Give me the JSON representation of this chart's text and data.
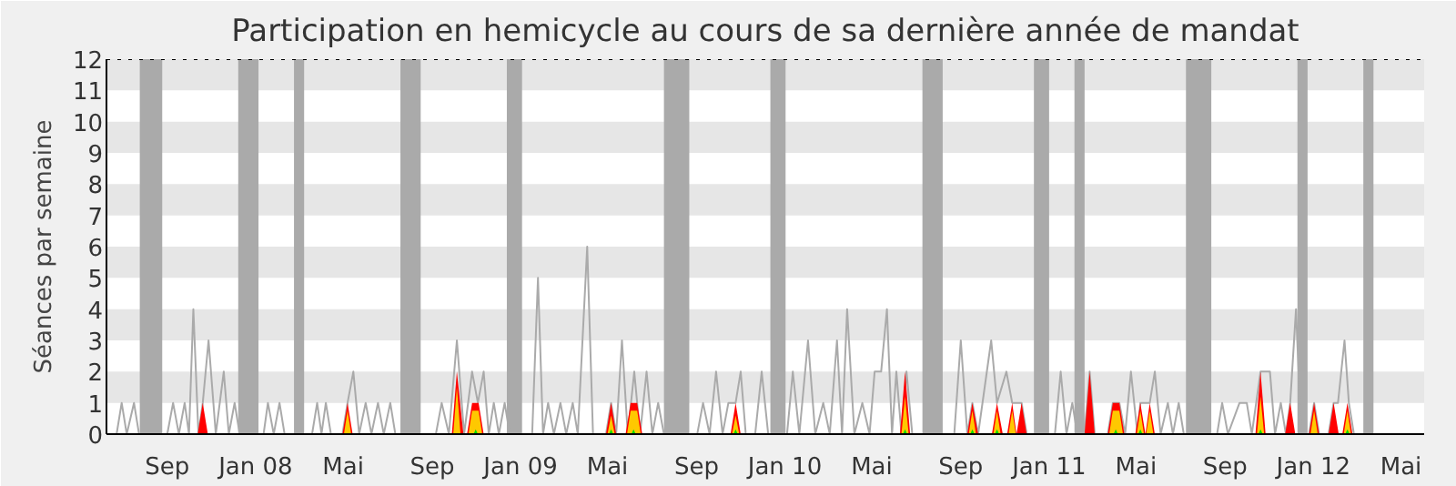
{
  "chart_data": {
    "type": "line",
    "title": "Participation en hemicycle au cours de sa dernière année de mandat",
    "ylabel": "Séances par semaine",
    "xlim": [
      "2007-06-09",
      "2012-06-02"
    ],
    "xticks": [
      {
        "value": "2007-09-01",
        "label": "Sep"
      },
      {
        "value": "2008-01-01",
        "label": "Jan 08"
      },
      {
        "value": "2008-05-01",
        "label": "Mai"
      },
      {
        "value": "2008-09-01",
        "label": "Sep"
      },
      {
        "value": "2009-01-01",
        "label": "Jan 09"
      },
      {
        "value": "2009-05-01",
        "label": "Mai"
      },
      {
        "value": "2009-09-01",
        "label": "Sep"
      },
      {
        "value": "2010-01-01",
        "label": "Jan 10"
      },
      {
        "value": "2010-05-01",
        "label": "Mai"
      },
      {
        "value": "2010-09-01",
        "label": "Sep"
      },
      {
        "value": "2011-01-01",
        "label": "Jan 11"
      },
      {
        "value": "2011-05-01",
        "label": "Mai"
      },
      {
        "value": "2011-09-01",
        "label": "Sep"
      },
      {
        "value": "2012-01-01",
        "label": "Jan 12"
      },
      {
        "value": "2012-05-01",
        "label": "Mai"
      }
    ],
    "ylim": [
      0,
      12
    ],
    "yticks": [
      0,
      1,
      2,
      3,
      4,
      5,
      6,
      7,
      8,
      9,
      10,
      11,
      12
    ],
    "bands": [
      {
        "axis": "y",
        "from": 1,
        "to": 2,
        "color": "#e6e6e6"
      },
      {
        "axis": "y",
        "from": 3,
        "to": 4,
        "color": "#e6e6e6"
      },
      {
        "axis": "y",
        "from": 5,
        "to": 6,
        "color": "#e6e6e6"
      },
      {
        "axis": "y",
        "from": 7,
        "to": 8,
        "color": "#e6e6e6"
      },
      {
        "axis": "y",
        "from": 9,
        "to": 10,
        "color": "#e6e6e6"
      },
      {
        "axis": "y",
        "from": 11,
        "to": 12,
        "color": "#e6e6e6"
      },
      {
        "axis": "x",
        "from": "2007-07-25",
        "to": "2007-08-25",
        "color": "#aaaaaa"
      },
      {
        "axis": "x",
        "from": "2007-12-08",
        "to": "2008-01-05",
        "color": "#aaaaaa"
      },
      {
        "axis": "x",
        "from": "2008-02-23",
        "to": "2008-03-08",
        "color": "#aaaaaa"
      },
      {
        "axis": "x",
        "from": "2008-07-19",
        "to": "2008-08-16",
        "color": "#aaaaaa"
      },
      {
        "axis": "x",
        "from": "2008-12-13",
        "to": "2009-01-03",
        "color": "#aaaaaa"
      },
      {
        "axis": "x",
        "from": "2009-07-18",
        "to": "2009-08-22",
        "color": "#aaaaaa"
      },
      {
        "axis": "x",
        "from": "2009-12-12",
        "to": "2010-01-02",
        "color": "#aaaaaa"
      },
      {
        "axis": "x",
        "from": "2010-07-10",
        "to": "2010-08-07",
        "color": "#aaaaaa"
      },
      {
        "axis": "x",
        "from": "2010-12-11",
        "to": "2011-01-01",
        "color": "#aaaaaa"
      },
      {
        "axis": "x",
        "from": "2011-02-05",
        "to": "2011-02-19",
        "color": "#aaaaaa"
      },
      {
        "axis": "x",
        "from": "2011-07-09",
        "to": "2011-08-13",
        "color": "#aaaaaa"
      },
      {
        "axis": "x",
        "from": "2011-12-10",
        "to": "2011-12-24",
        "color": "#aaaaaa"
      },
      {
        "axis": "x",
        "from": "2012-03-10",
        "to": "2012-03-24",
        "color": "#aaaaaa"
      }
    ],
    "ref_lines": [
      {
        "axis": "y",
        "value": 12,
        "color": "#000000",
        "line_style": "dotted"
      }
    ],
    "series": [
      {
        "color": "#aaaaaa",
        "x": [
          "2007-06-09",
          "2007-06-23",
          "2007-06-30",
          "2007-07-07",
          "2007-07-17",
          "2007-07-24",
          "2007-09-01",
          "2007-09-09",
          "2007-09-17",
          "2007-09-25",
          "2007-10-01",
          "2007-10-07",
          "2007-10-14",
          "2007-10-20",
          "2007-10-28",
          "2007-11-07",
          "2007-11-18",
          "2007-11-25",
          "2007-12-03",
          "2007-12-10",
          "2008-01-12",
          "2008-01-18",
          "2008-01-26",
          "2008-02-03",
          "2008-02-10",
          "2008-03-19",
          "2008-03-26",
          "2008-04-01",
          "2008-04-07",
          "2008-04-14",
          "2008-04-30",
          "2008-05-07",
          "2008-05-15",
          "2008-05-23",
          "2008-06-01",
          "2008-06-09",
          "2008-06-18",
          "2008-06-26",
          "2008-07-05",
          "2008-07-12",
          "2008-09-06",
          "2008-09-14",
          "2008-09-24",
          "2008-10-05",
          "2008-10-15",
          "2008-10-26",
          "2008-11-03",
          "2008-11-11",
          "2008-11-18",
          "2008-11-25",
          "2008-12-02",
          "2008-12-10",
          "2008-12-17",
          "2009-01-17",
          "2009-01-25",
          "2009-02-01",
          "2009-02-08",
          "2009-02-16",
          "2009-02-25",
          "2009-03-05",
          "2009-03-14",
          "2009-03-21",
          "2009-04-03",
          "2009-04-11",
          "2009-04-29",
          "2009-05-06",
          "2009-05-13",
          "2009-05-21",
          "2009-05-29",
          "2009-06-07",
          "2009-06-15",
          "2009-06-24",
          "2009-07-02",
          "2009-07-10",
          "2009-07-18",
          "2009-09-02",
          "2009-09-10",
          "2009-09-19",
          "2009-09-28",
          "2009-10-07",
          "2009-10-15",
          "2009-10-25",
          "2009-11-01",
          "2009-11-08",
          "2009-11-21",
          "2009-11-30",
          "2009-12-09",
          "2010-01-04",
          "2010-01-12",
          "2010-01-21",
          "2010-02-02",
          "2010-02-12",
          "2010-02-23",
          "2010-03-04",
          "2010-03-14",
          "2010-03-21",
          "2010-03-28",
          "2010-04-07",
          "2010-04-18",
          "2010-04-28",
          "2010-05-05",
          "2010-05-14",
          "2010-05-22",
          "2010-05-29",
          "2010-06-04",
          "2010-06-11",
          "2010-06-18",
          "2010-06-26",
          "2010-08-23",
          "2010-09-01",
          "2010-09-10",
          "2010-09-17",
          "2010-09-25",
          "2010-10-13",
          "2010-10-21",
          "2010-11-03",
          "2010-11-11",
          "2010-11-17",
          "2010-11-24",
          "2010-12-01",
          "2011-01-09",
          "2011-01-17",
          "2011-01-25",
          "2011-02-02",
          "2011-02-09",
          "2011-02-19",
          "2011-02-26",
          "2011-03-05",
          "2011-03-23",
          "2011-03-30",
          "2011-04-08",
          "2011-04-16",
          "2011-04-24",
          "2011-05-03",
          "2011-05-07",
          "2011-05-20",
          "2011-05-27",
          "2011-06-04",
          "2011-06-14",
          "2011-06-21",
          "2011-06-29",
          "2011-07-06",
          "2011-08-21",
          "2011-08-28",
          "2011-09-05",
          "2011-09-21",
          "2011-10-01",
          "2011-10-08",
          "2011-10-20",
          "2011-11-02",
          "2011-11-09",
          "2011-11-17",
          "2011-11-24",
          "2011-11-30",
          "2011-12-08",
          "2011-12-15",
          "2011-12-26",
          "2012-01-02",
          "2012-01-09",
          "2012-01-22",
          "2012-01-29",
          "2012-02-04",
          "2012-02-13",
          "2012-02-19",
          "2012-02-26",
          "2012-06-02"
        ],
        "values": [
          0,
          0,
          1,
          0,
          1,
          0,
          0,
          1,
          0,
          1,
          0,
          4,
          0,
          1,
          3,
          0,
          2,
          0,
          1,
          0,
          0,
          1,
          0,
          1,
          0,
          0,
          1,
          0,
          1,
          0,
          0,
          1,
          2,
          0,
          1,
          0,
          1,
          0,
          1,
          0,
          0,
          1,
          0,
          3,
          0,
          2,
          1,
          2,
          0,
          1,
          0,
          1,
          0,
          0,
          5,
          0,
          1,
          0,
          1,
          0,
          1,
          0,
          6,
          0,
          0,
          1,
          0,
          3,
          0,
          2,
          0,
          2,
          0,
          1,
          0,
          0,
          1,
          0,
          2,
          0,
          1,
          1,
          2,
          0,
          0,
          2,
          0,
          0,
          2,
          0,
          3,
          0,
          1,
          0,
          3,
          0,
          4,
          0,
          1,
          0,
          2,
          2,
          4,
          0,
          2,
          0,
          2,
          0,
          0,
          3,
          0,
          1,
          0,
          3,
          1,
          2,
          1,
          1,
          1,
          0,
          0,
          2,
          0,
          1,
          0,
          0,
          2,
          0,
          0,
          1,
          1,
          0,
          2,
          0,
          1,
          1,
          2,
          0,
          1,
          0,
          1,
          0,
          0,
          1,
          0,
          1,
          1,
          0,
          2,
          2,
          0,
          1,
          0,
          1,
          4,
          0,
          0,
          1,
          0,
          0,
          1,
          1,
          3,
          1,
          0,
          0
        ]
      },
      {
        "type": "area",
        "color": "#ff0000",
        "x": [
          "2007-10-13",
          "2007-10-20",
          "2007-10-27",
          "2008-04-30",
          "2008-05-07",
          "2008-05-14",
          "2008-09-28",
          "2008-10-05",
          "2008-10-14",
          "2008-10-19",
          "2008-10-26",
          "2008-11-04",
          "2008-11-11",
          "2009-04-29",
          "2009-05-06",
          "2009-05-13",
          "2009-05-26",
          "2009-06-02",
          "2009-06-11",
          "2009-06-18",
          "2009-10-18",
          "2009-10-25",
          "2009-11-01",
          "2010-06-09",
          "2010-06-16",
          "2010-06-23",
          "2010-09-10",
          "2010-09-17",
          "2010-09-25",
          "2010-10-14",
          "2010-10-21",
          "2010-10-29",
          "2010-11-04",
          "2010-11-11",
          "2010-11-17",
          "2010-11-24",
          "2010-12-01",
          "2011-02-19",
          "2011-02-26",
          "2011-03-05",
          "2011-03-23",
          "2011-03-30",
          "2011-04-08",
          "2011-04-15",
          "2011-04-30",
          "2011-05-07",
          "2011-05-14",
          "2011-05-20",
          "2011-05-27",
          "2011-10-13",
          "2011-10-20",
          "2011-10-27",
          "2011-11-23",
          "2011-11-30",
          "2011-12-07",
          "2011-12-26",
          "2012-01-02",
          "2012-01-09",
          "2012-01-22",
          "2012-01-29",
          "2012-02-05",
          "2012-02-10",
          "2012-02-17",
          "2012-02-24"
        ],
        "values": [
          0,
          1,
          0,
          0,
          1,
          0,
          0,
          2,
          0,
          0,
          1,
          1,
          0,
          0,
          1,
          0,
          0,
          1,
          1,
          0,
          0,
          1,
          0,
          0,
          2,
          0,
          0,
          1,
          0,
          0,
          1,
          0,
          0,
          1,
          0,
          1,
          0,
          0,
          2,
          0,
          0,
          1,
          1,
          0,
          0,
          1,
          0,
          1,
          0,
          0,
          2,
          0,
          0,
          1,
          0,
          0,
          1,
          0,
          0,
          1,
          0,
          0,
          1,
          0
        ]
      },
      {
        "type": "area",
        "color": "#ffc800",
        "x": [
          "2008-05-02",
          "2008-05-07",
          "2008-05-12",
          "2008-09-30",
          "2008-10-05",
          "2008-10-10",
          "2008-10-21",
          "2008-10-26",
          "2008-11-04",
          "2008-11-09",
          "2009-05-01",
          "2009-05-06",
          "2009-05-11",
          "2009-05-28",
          "2009-06-02",
          "2009-06-11",
          "2009-06-16",
          "2009-10-20",
          "2009-10-25",
          "2009-10-30",
          "2010-06-11",
          "2010-06-16",
          "2010-06-21",
          "2010-09-12",
          "2010-09-17",
          "2010-09-22",
          "2010-10-16",
          "2010-10-21",
          "2010-10-26",
          "2010-11-06",
          "2010-11-11",
          "2010-11-16",
          "2011-03-25",
          "2011-03-30",
          "2011-04-08",
          "2011-04-13",
          "2011-05-02",
          "2011-05-07",
          "2011-05-12",
          "2011-05-15",
          "2011-05-20",
          "2011-05-25",
          "2011-10-15",
          "2011-10-20",
          "2011-10-25",
          "2011-12-28",
          "2012-01-02",
          "2012-01-07",
          "2012-02-12",
          "2012-02-17",
          "2012-02-22"
        ],
        "values": [
          0,
          0.75,
          0,
          0,
          1.5,
          0,
          0,
          0.75,
          0.75,
          0,
          0,
          0.6,
          0,
          0,
          0.75,
          0.75,
          0,
          0,
          0.6,
          0,
          0,
          1.2,
          0,
          0,
          0.75,
          0,
          0,
          0.75,
          0,
          0,
          0.75,
          0,
          0,
          0.75,
          0.75,
          0,
          0,
          0.75,
          0,
          0,
          0.75,
          0,
          0,
          1.2,
          0,
          0,
          0.75,
          0,
          0,
          0.75,
          0
        ]
      },
      {
        "type": "area",
        "color": "#00dd00",
        "x": [
          "2008-10-28",
          "2008-10-31",
          "2008-11-03",
          "2009-05-03",
          "2009-05-06",
          "2009-05-09",
          "2009-06-03",
          "2009-06-06",
          "2009-06-09",
          "2009-10-22",
          "2009-10-25",
          "2009-10-28",
          "2010-06-13",
          "2010-06-16",
          "2010-06-19",
          "2010-09-14",
          "2010-09-17",
          "2010-09-20",
          "2010-10-18",
          "2010-10-21",
          "2010-10-24",
          "2011-03-31",
          "2011-04-03",
          "2011-04-06",
          "2011-05-04",
          "2011-05-07",
          "2011-05-10",
          "2011-10-17",
          "2011-10-20",
          "2011-10-23",
          "2012-02-14",
          "2012-02-17",
          "2012-02-20"
        ],
        "values": [
          0,
          0.15,
          0,
          0,
          0.15,
          0,
          0,
          0.15,
          0,
          0,
          0.15,
          0,
          0,
          0.15,
          0,
          0,
          0.15,
          0,
          0,
          0.15,
          0,
          0,
          0.15,
          0,
          0,
          0.15,
          0,
          0,
          0.15,
          0,
          0,
          0.15,
          0
        ]
      }
    ]
  }
}
